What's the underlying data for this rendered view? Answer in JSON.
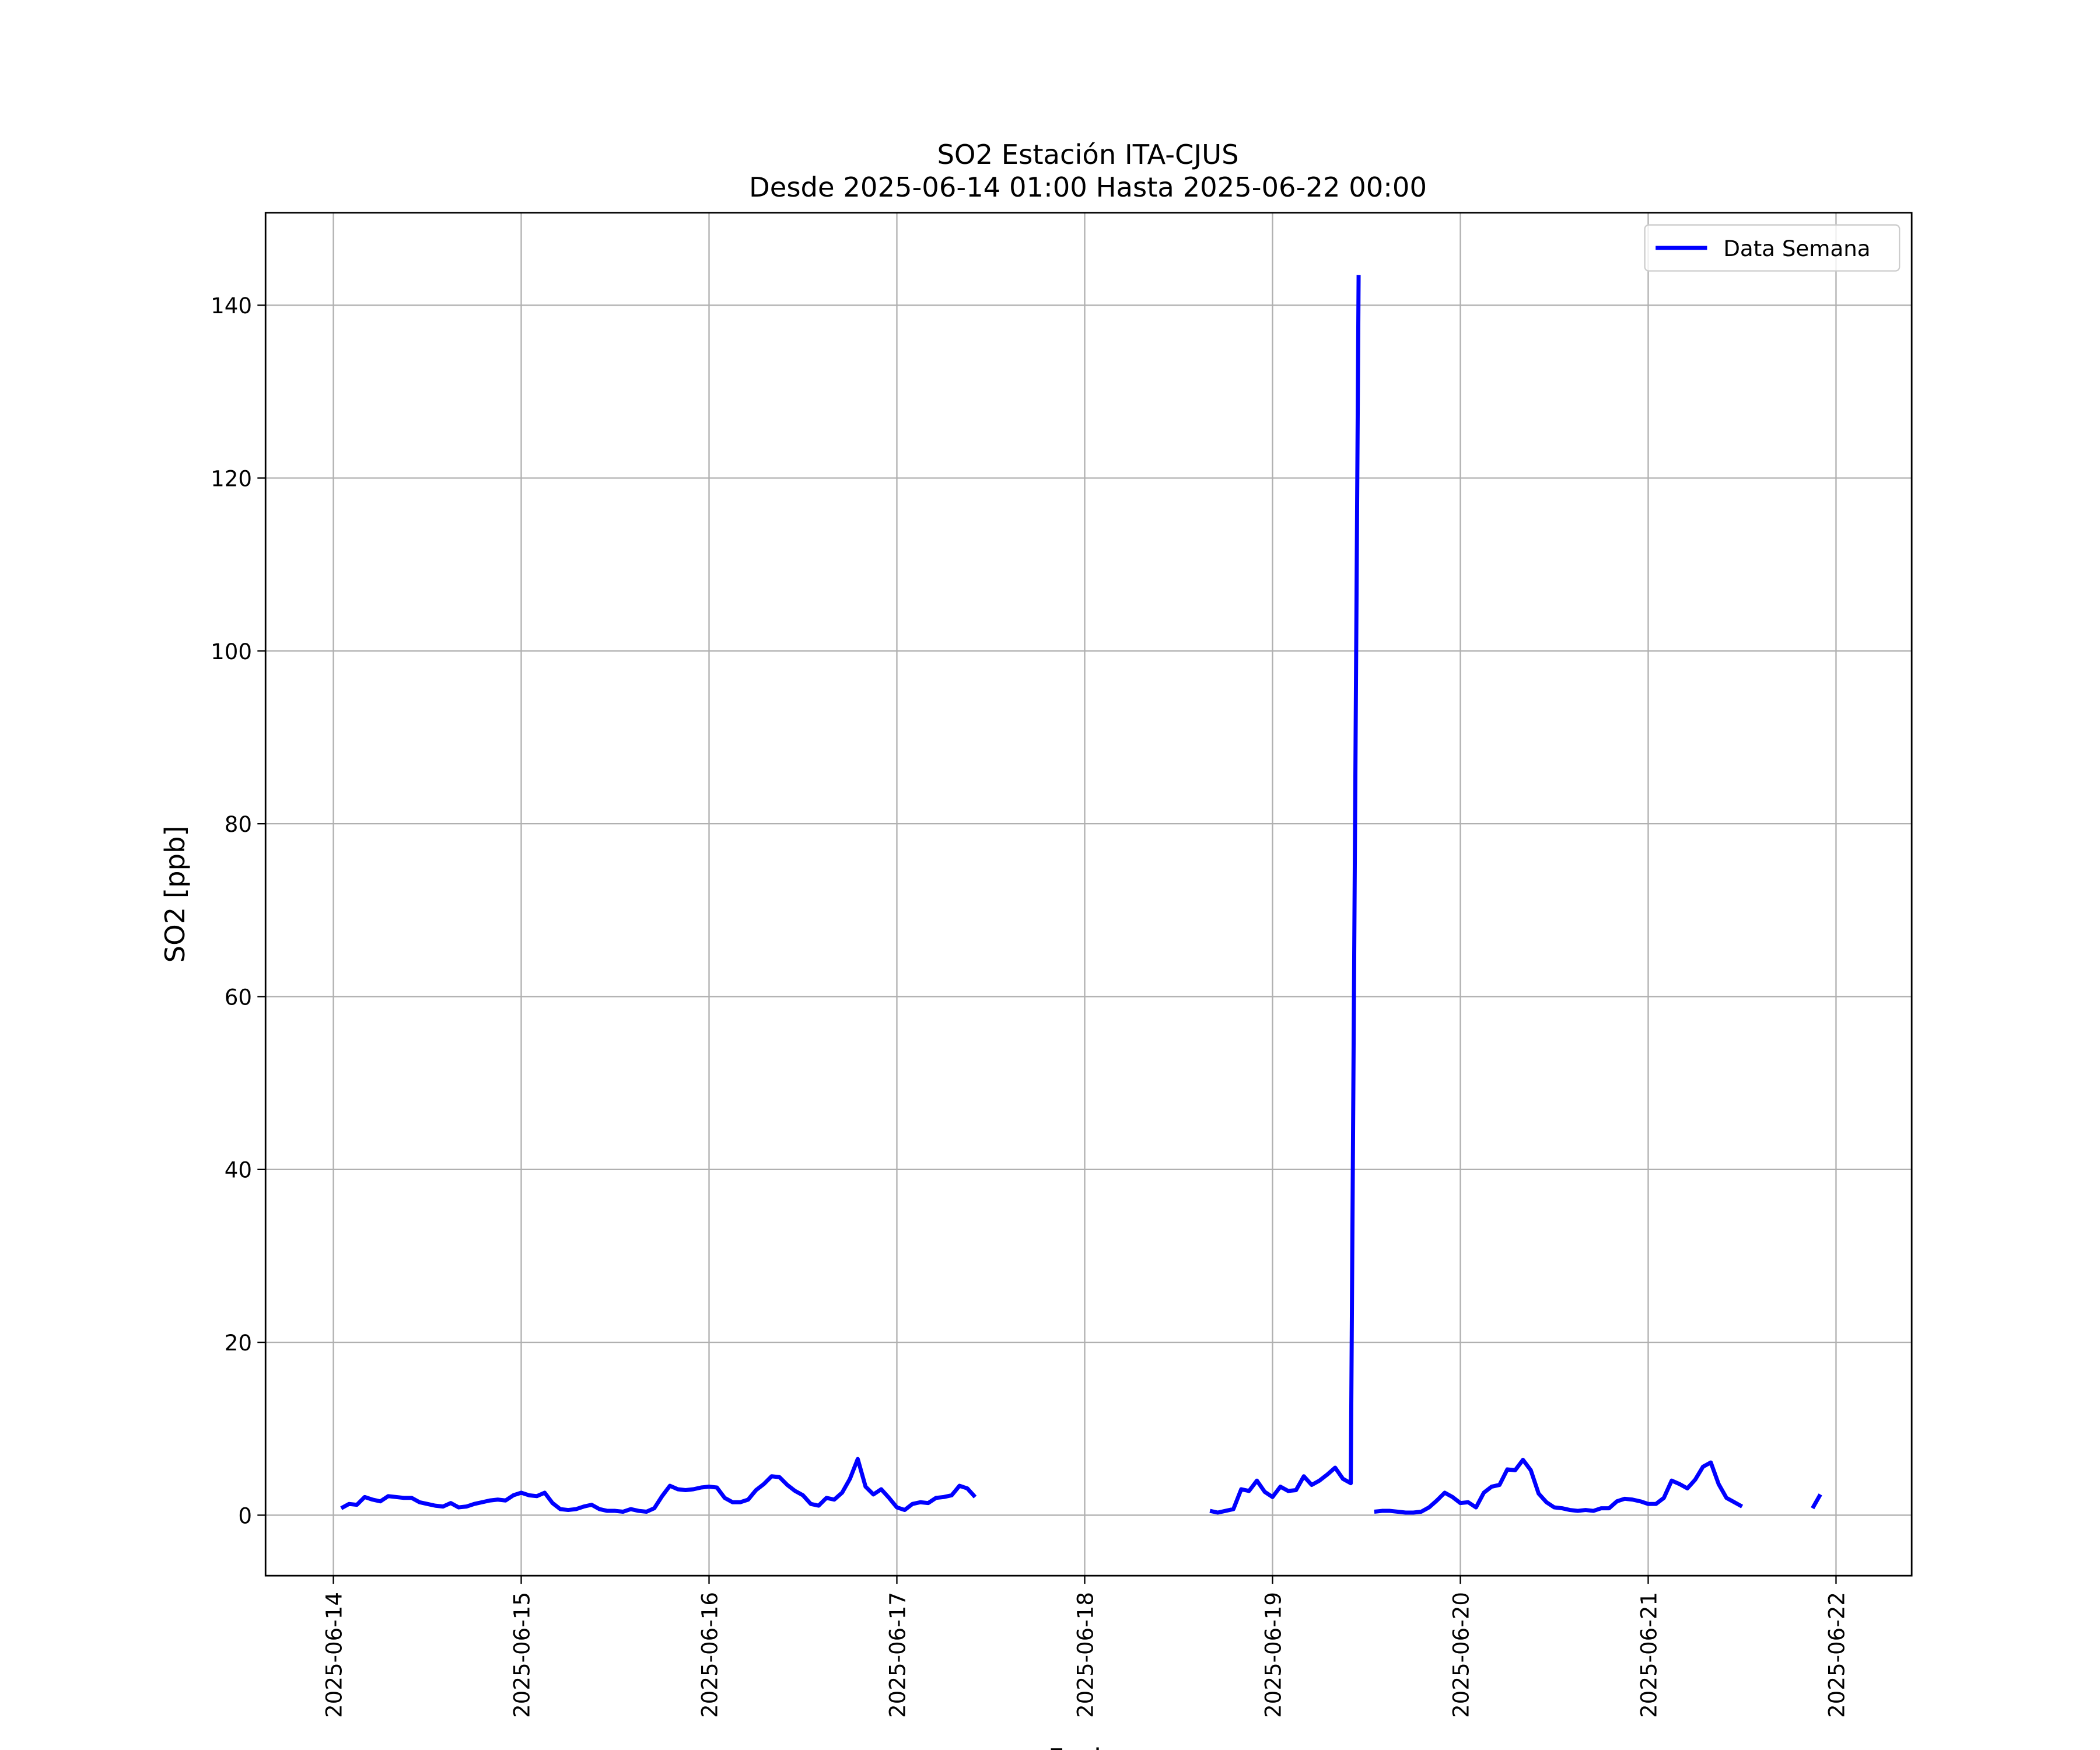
{
  "chart_data": {
    "type": "line",
    "title": "SO2 Estación ITA-CJUS",
    "subtitle": "Desde 2025-06-14 01:00 Hasta 2025-06-22 00:00",
    "xlabel": "Fecha",
    "ylabel": "SO2 [ppb]",
    "legend": "upper right",
    "grid": true,
    "xlim": [
      "2025-06-13 15:20",
      "2025-06-22 09:40"
    ],
    "ylim": [
      -7,
      150.7
    ],
    "xticks": [
      "2025-06-14",
      "2025-06-15",
      "2025-06-16",
      "2025-06-17",
      "2025-06-18",
      "2025-06-19",
      "2025-06-20",
      "2025-06-21",
      "2025-06-22"
    ],
    "yticks": [
      0,
      20,
      40,
      60,
      80,
      100,
      120,
      140
    ],
    "x": [
      "2025-06-14 01:00",
      "2025-06-14 02:00",
      "2025-06-14 03:00",
      "2025-06-14 04:00",
      "2025-06-14 05:00",
      "2025-06-14 06:00",
      "2025-06-14 07:00",
      "2025-06-14 08:00",
      "2025-06-14 09:00",
      "2025-06-14 10:00",
      "2025-06-14 11:00",
      "2025-06-14 12:00",
      "2025-06-14 13:00",
      "2025-06-14 14:00",
      "2025-06-14 15:00",
      "2025-06-14 16:00",
      "2025-06-14 17:00",
      "2025-06-14 18:00",
      "2025-06-14 19:00",
      "2025-06-14 20:00",
      "2025-06-14 21:00",
      "2025-06-14 22:00",
      "2025-06-14 23:00",
      "2025-06-15 00:00",
      "2025-06-15 01:00",
      "2025-06-15 02:00",
      "2025-06-15 03:00",
      "2025-06-15 04:00",
      "2025-06-15 05:00",
      "2025-06-15 06:00",
      "2025-06-15 07:00",
      "2025-06-15 08:00",
      "2025-06-15 09:00",
      "2025-06-15 10:00",
      "2025-06-15 11:00",
      "2025-06-15 12:00",
      "2025-06-15 13:00",
      "2025-06-15 14:00",
      "2025-06-15 15:00",
      "2025-06-15 16:00",
      "2025-06-15 17:00",
      "2025-06-15 18:00",
      "2025-06-15 19:00",
      "2025-06-15 20:00",
      "2025-06-15 21:00",
      "2025-06-15 22:00",
      "2025-06-15 23:00",
      "2025-06-16 00:00",
      "2025-06-16 01:00",
      "2025-06-16 02:00",
      "2025-06-16 03:00",
      "2025-06-16 04:00",
      "2025-06-16 05:00",
      "2025-06-16 06:00",
      "2025-06-16 07:00",
      "2025-06-16 08:00",
      "2025-06-16 09:00",
      "2025-06-16 10:00",
      "2025-06-16 11:00",
      "2025-06-16 12:00",
      "2025-06-16 13:00",
      "2025-06-16 14:00",
      "2025-06-16 15:00",
      "2025-06-16 16:00",
      "2025-06-16 17:00",
      "2025-06-16 18:00",
      "2025-06-16 19:00",
      "2025-06-16 20:00",
      "2025-06-16 21:00",
      "2025-06-16 22:00",
      "2025-06-16 23:00",
      "2025-06-17 00:00",
      "2025-06-17 01:00",
      "2025-06-17 02:00",
      "2025-06-17 03:00",
      "2025-06-17 04:00",
      "2025-06-17 05:00",
      "2025-06-17 06:00",
      "2025-06-17 07:00",
      "2025-06-17 08:00",
      "2025-06-17 09:00",
      "2025-06-17 10:00",
      "2025-06-17 11:00",
      "2025-06-17 12:00",
      "2025-06-17 13:00",
      "2025-06-17 14:00",
      "2025-06-17 15:00",
      "2025-06-17 16:00",
      "2025-06-17 17:00",
      "2025-06-17 18:00",
      "2025-06-17 19:00",
      "2025-06-17 20:00",
      "2025-06-17 21:00",
      "2025-06-17 22:00",
      "2025-06-17 23:00",
      "2025-06-18 00:00",
      "2025-06-18 01:00",
      "2025-06-18 02:00",
      "2025-06-18 03:00",
      "2025-06-18 04:00",
      "2025-06-18 05:00",
      "2025-06-18 06:00",
      "2025-06-18 07:00",
      "2025-06-18 08:00",
      "2025-06-18 09:00",
      "2025-06-18 10:00",
      "2025-06-18 11:00",
      "2025-06-18 12:00",
      "2025-06-18 13:00",
      "2025-06-18 14:00",
      "2025-06-18 15:00",
      "2025-06-18 16:00",
      "2025-06-18 17:00",
      "2025-06-18 18:00",
      "2025-06-18 19:00",
      "2025-06-18 20:00",
      "2025-06-18 21:00",
      "2025-06-18 22:00",
      "2025-06-18 23:00",
      "2025-06-19 00:00",
      "2025-06-19 01:00",
      "2025-06-19 02:00",
      "2025-06-19 03:00",
      "2025-06-19 04:00",
      "2025-06-19 05:00",
      "2025-06-19 06:00",
      "2025-06-19 07:00",
      "2025-06-19 08:00",
      "2025-06-19 09:00",
      "2025-06-19 10:00",
      "2025-06-19 11:00",
      "2025-06-19 12:00",
      "2025-06-19 13:00",
      "2025-06-19 14:00",
      "2025-06-19 15:00",
      "2025-06-19 16:00",
      "2025-06-19 17:00",
      "2025-06-19 18:00",
      "2025-06-19 19:00",
      "2025-06-19 20:00",
      "2025-06-19 21:00",
      "2025-06-19 22:00",
      "2025-06-19 23:00",
      "2025-06-20 00:00",
      "2025-06-20 01:00",
      "2025-06-20 02:00",
      "2025-06-20 03:00",
      "2025-06-20 04:00",
      "2025-06-20 05:00",
      "2025-06-20 06:00",
      "2025-06-20 07:00",
      "2025-06-20 08:00",
      "2025-06-20 09:00",
      "2025-06-20 10:00",
      "2025-06-20 11:00",
      "2025-06-20 12:00",
      "2025-06-20 13:00",
      "2025-06-20 14:00",
      "2025-06-20 15:00",
      "2025-06-20 16:00",
      "2025-06-20 17:00",
      "2025-06-20 18:00",
      "2025-06-20 19:00",
      "2025-06-20 20:00",
      "2025-06-20 21:00",
      "2025-06-20 22:00",
      "2025-06-20 23:00",
      "2025-06-21 00:00",
      "2025-06-21 01:00",
      "2025-06-21 02:00",
      "2025-06-21 03:00",
      "2025-06-21 04:00",
      "2025-06-21 05:00",
      "2025-06-21 06:00",
      "2025-06-21 07:00",
      "2025-06-21 08:00",
      "2025-06-21 09:00",
      "2025-06-21 10:00",
      "2025-06-21 11:00",
      "2025-06-21 12:00",
      "2025-06-21 13:00",
      "2025-06-21 14:00",
      "2025-06-21 15:00",
      "2025-06-21 16:00",
      "2025-06-21 17:00",
      "2025-06-21 18:00",
      "2025-06-21 19:00",
      "2025-06-21 20:00",
      "2025-06-21 21:00",
      "2025-06-21 22:00",
      "2025-06-21 23:00",
      "2025-06-22 00:00"
    ],
    "series": [
      {
        "name": "Data Semana",
        "color": "#0000ff",
        "values": [
          0.8,
          1.3,
          1.2,
          2.1,
          1.8,
          1.6,
          2.2,
          2.1,
          2.0,
          2.0,
          1.5,
          1.3,
          1.1,
          1.0,
          1.4,
          0.9,
          1.0,
          1.3,
          1.5,
          1.7,
          1.8,
          1.7,
          2.3,
          2.6,
          2.3,
          2.2,
          2.6,
          1.4,
          0.7,
          0.6,
          0.7,
          1.0,
          1.2,
          0.7,
          0.5,
          0.5,
          0.4,
          0.7,
          0.5,
          0.4,
          0.8,
          2.2,
          3.4,
          3.0,
          2.9,
          3.0,
          3.2,
          3.3,
          3.2,
          2.0,
          1.5,
          1.5,
          1.8,
          2.9,
          3.6,
          4.5,
          4.4,
          3.5,
          2.8,
          2.3,
          1.3,
          1.1,
          2.0,
          1.8,
          2.6,
          4.2,
          6.5,
          3.3,
          2.4,
          3.0,
          2.0,
          0.9,
          0.6,
          1.3,
          1.5,
          1.4,
          2.0,
          2.1,
          2.3,
          3.4,
          3.1,
          2.1,
          null,
          null,
          null,
          null,
          null,
          null,
          null,
          null,
          null,
          null,
          null,
          null,
          null,
          null,
          null,
          null,
          null,
          null,
          null,
          null,
          null,
          null,
          null,
          null,
          null,
          null,
          null,
          null,
          null,
          0.5,
          0.3,
          0.5,
          0.7,
          3.0,
          2.8,
          4.0,
          2.7,
          2.1,
          3.3,
          2.8,
          2.9,
          4.5,
          3.5,
          4.0,
          4.7,
          5.5,
          4.2,
          3.7,
          143.5,
          null,
          0.4,
          0.5,
          0.5,
          0.4,
          0.3,
          0.3,
          0.4,
          0.9,
          1.7,
          2.6,
          2.1,
          1.4,
          1.5,
          0.9,
          2.6,
          3.3,
          3.5,
          5.3,
          5.2,
          6.4,
          5.2,
          2.5,
          1.5,
          0.9,
          0.8,
          0.6,
          0.5,
          0.6,
          0.5,
          0.8,
          0.8,
          1.6,
          1.9,
          1.8,
          1.6,
          1.3,
          1.3,
          2.0,
          4.0,
          3.6,
          3.1,
          4.1,
          5.6,
          6.1,
          3.6,
          2.0,
          1.5,
          1.0,
          null,
          null,
          null,
          null,
          null,
          null,
          null,
          null,
          0.8,
          2.4,
          null,
          null
        ]
      }
    ]
  }
}
